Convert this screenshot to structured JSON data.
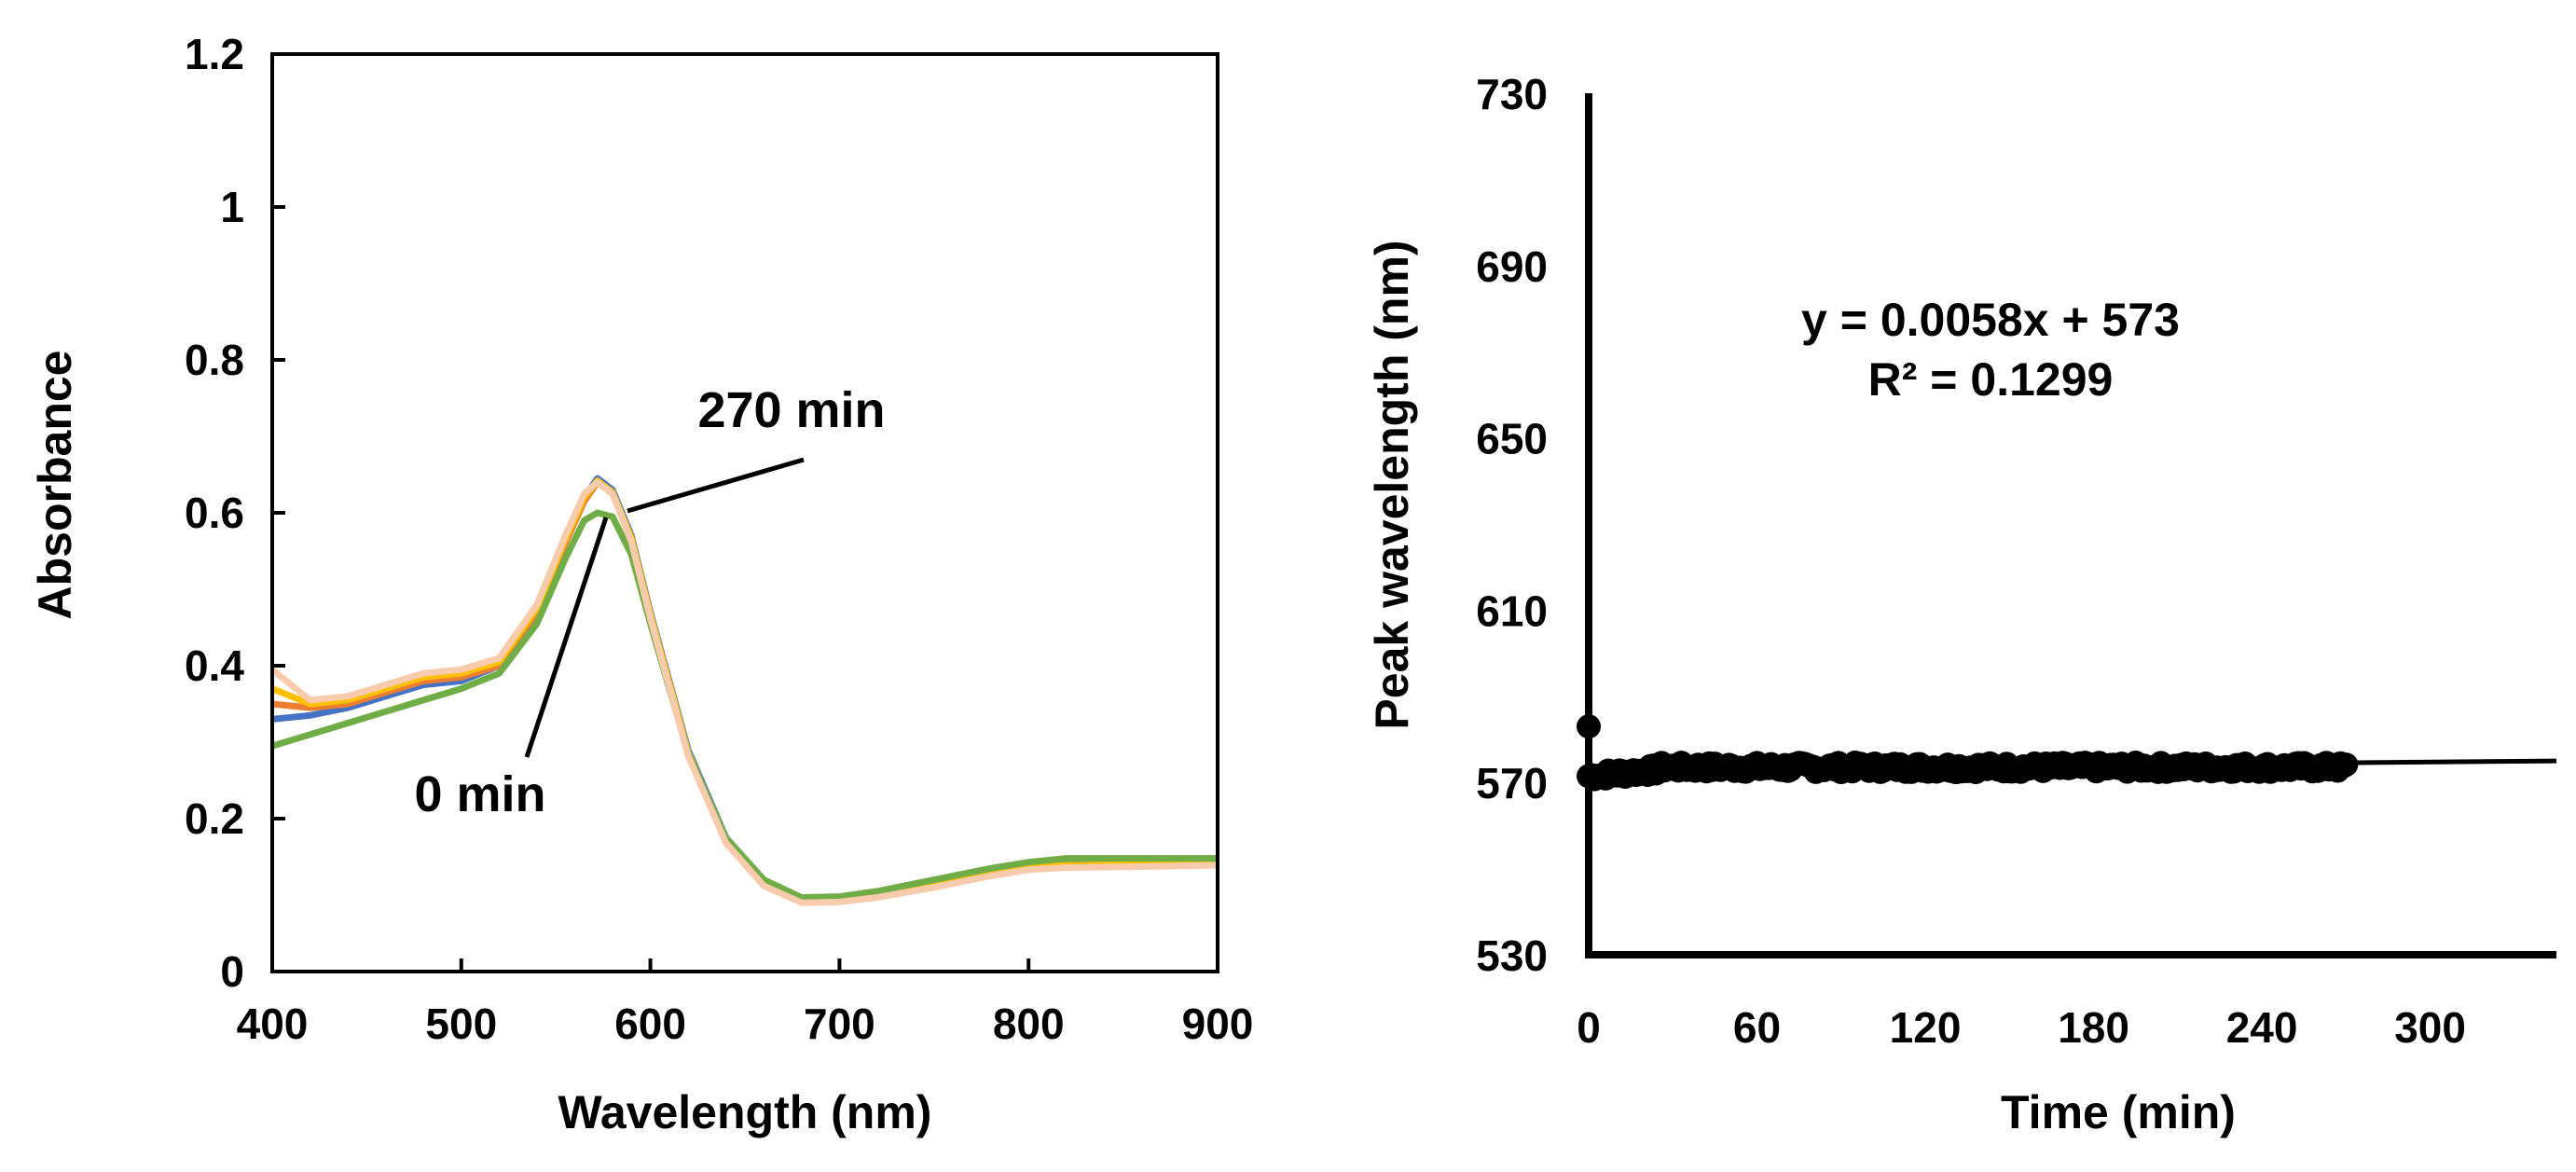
{
  "chart_data": [
    {
      "type": "line",
      "xlabel": "Wavelength (nm)",
      "ylabel": "Absorbance",
      "xlim": [
        400,
        900
      ],
      "ylim": [
        0,
        1.2
      ],
      "xticks": [
        "400",
        "500",
        "600",
        "700",
        "800",
        "900"
      ],
      "yticks": [
        "0",
        "0.2",
        "0.4",
        "0.6",
        "0.8",
        "1",
        "1.2"
      ],
      "annotations": {
        "late": "270 min",
        "early": "0 min"
      },
      "x": [
        400,
        420,
        440,
        460,
        480,
        500,
        520,
        540,
        555,
        565,
        572,
        580,
        590,
        600,
        620,
        640,
        660,
        680,
        700,
        720,
        750,
        780,
        800,
        820,
        850,
        880,
        900
      ],
      "series": [
        {
          "name": "blue",
          "color": "#4472C4",
          "values": [
            0.33,
            0.335,
            0.345,
            0.36,
            0.375,
            0.38,
            0.4,
            0.47,
            0.56,
            0.62,
            0.645,
            0.63,
            0.57,
            0.47,
            0.29,
            0.175,
            0.12,
            0.095,
            0.095,
            0.1,
            0.115,
            0.13,
            0.138,
            0.14,
            0.14,
            0.142,
            0.143
          ]
        },
        {
          "name": "orange",
          "color": "#ED7D31",
          "values": [
            0.35,
            0.345,
            0.35,
            0.365,
            0.38,
            0.385,
            0.4,
            0.47,
            0.56,
            0.615,
            0.64,
            0.625,
            0.565,
            0.465,
            0.285,
            0.17,
            0.115,
            0.092,
            0.093,
            0.098,
            0.112,
            0.127,
            0.135,
            0.138,
            0.139,
            0.14,
            0.141
          ]
        },
        {
          "name": "yellow",
          "color": "#FFC000",
          "values": [
            0.37,
            0.35,
            0.355,
            0.37,
            0.385,
            0.39,
            0.405,
            0.475,
            0.565,
            0.62,
            0.642,
            0.627,
            0.567,
            0.467,
            0.287,
            0.172,
            0.117,
            0.093,
            0.094,
            0.099,
            0.113,
            0.128,
            0.136,
            0.139,
            0.14,
            0.141,
            0.142
          ]
        },
        {
          "name": "green",
          "color": "#70AD47",
          "values": [
            0.295,
            0.31,
            0.325,
            0.34,
            0.355,
            0.37,
            0.39,
            0.455,
            0.54,
            0.59,
            0.6,
            0.595,
            0.545,
            0.455,
            0.285,
            0.175,
            0.12,
            0.097,
            0.098,
            0.105,
            0.12,
            0.135,
            0.143,
            0.148,
            0.148,
            0.148,
            0.148
          ]
        },
        {
          "name": "peach",
          "color": "#F8CBAD",
          "values": [
            0.395,
            0.355,
            0.36,
            0.375,
            0.39,
            0.395,
            0.41,
            0.48,
            0.57,
            0.625,
            0.64,
            0.625,
            0.562,
            0.462,
            0.282,
            0.168,
            0.112,
            0.09,
            0.091,
            0.097,
            0.11,
            0.125,
            0.133,
            0.136,
            0.137,
            0.138,
            0.139
          ]
        }
      ]
    },
    {
      "type": "scatter",
      "xlabel": "Time (min)",
      "ylabel": "Peak wavelength (nm)",
      "xlim": [
        -5,
        345
      ],
      "ylim": [
        530,
        730
      ],
      "xticks": [
        "0",
        "60",
        "120",
        "180",
        "240",
        "300"
      ],
      "yticks": [
        "530",
        "570",
        "610",
        "650",
        "690",
        "730"
      ],
      "equation": "y = 0.0058x + 573",
      "r_squared": "R² = 0.1299",
      "trend": {
        "slope": 0.0058,
        "intercept": 573,
        "x_range": [
          0,
          345
        ]
      },
      "outlier": {
        "x": 0,
        "y": 583
      },
      "points_summary": {
        "x_start": 0,
        "x_end": 270,
        "y_approx": 573.5
      }
    }
  ]
}
